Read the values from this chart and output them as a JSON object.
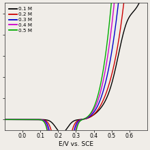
{
  "title": "",
  "xlabel": "E/V vs. SCE",
  "ylabel": "",
  "xlim": [
    -0.1,
    0.7
  ],
  "ylim": [
    -0.05,
    0.55
  ],
  "legend_labels": [
    "0.1 M",
    "0.2 M",
    "0.3 M",
    "0.4 M",
    "0.5 M"
  ],
  "line_colors": [
    "#000000",
    "#cc0000",
    "#0000cc",
    "#cc00cc",
    "#00aa00"
  ],
  "xticks": [
    0.0,
    0.1,
    0.2,
    0.3,
    0.4,
    0.5,
    0.6
  ],
  "background_color": "#f0ede8",
  "figsize": [
    2.2,
    2.2
  ],
  "dpi": 100
}
